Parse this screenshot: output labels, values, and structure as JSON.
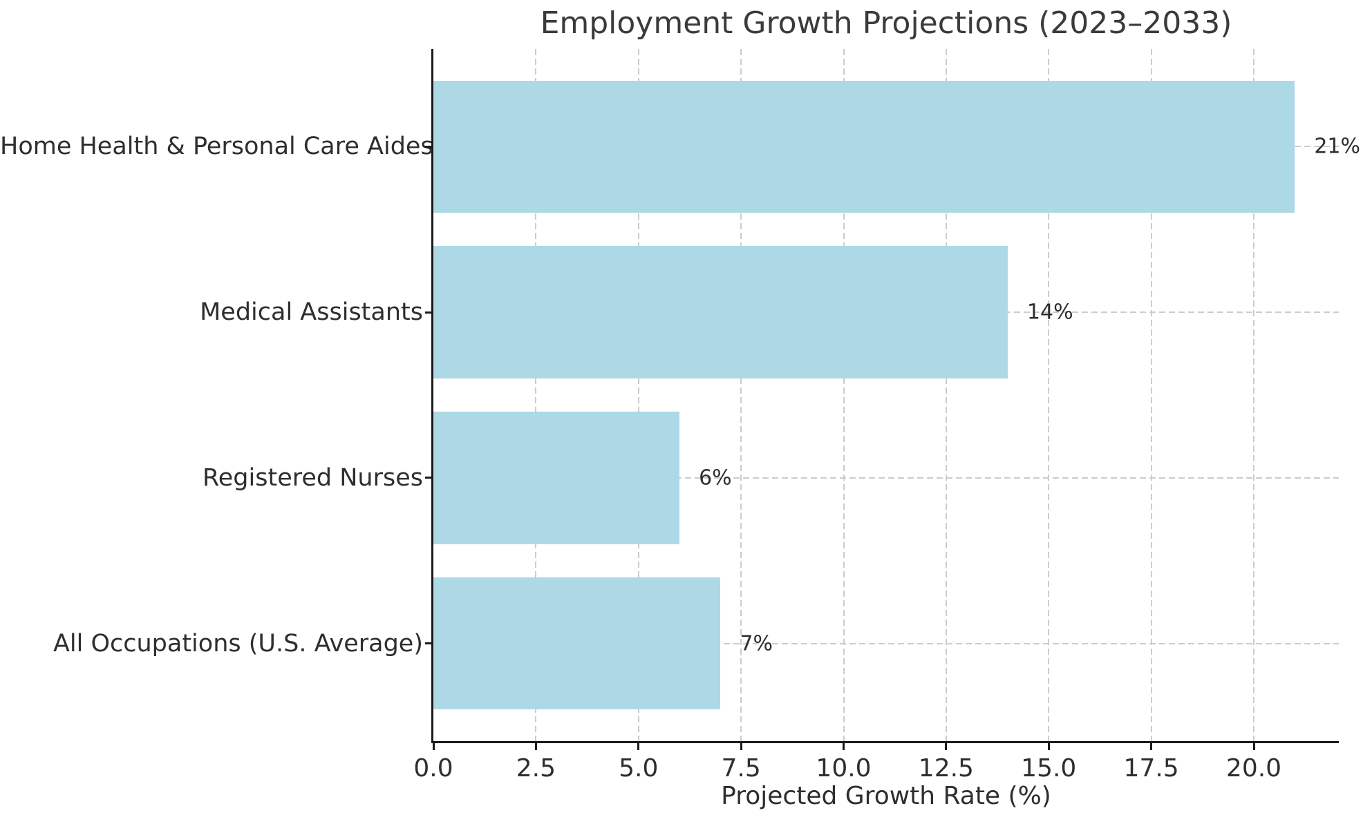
{
  "chart_data": {
    "type": "bar",
    "orientation": "horizontal",
    "title": "Employment Growth Projections (2023–2033)",
    "xlabel": "Projected Growth Rate (%)",
    "categories": [
      "Home Health & Personal Care Aides",
      "Medical Assistants",
      "Registered Nurses",
      "All Occupations (U.S. Average)"
    ],
    "values": [
      21,
      14,
      6,
      7
    ],
    "value_labels": [
      "21%",
      "14%",
      "6%",
      "7%"
    ],
    "xlim": [
      0,
      22
    ],
    "xticks": [
      0.0,
      2.5,
      5.0,
      7.5,
      10.0,
      12.5,
      15.0,
      17.5,
      20.0
    ],
    "xtick_labels": [
      "0.0",
      "2.5",
      "5.0",
      "7.5",
      "10.0",
      "12.5",
      "15.0",
      "17.5",
      "20.0"
    ],
    "grid": true,
    "grid_style": "dashed",
    "legend_position": "none",
    "colors": {
      "bar": "#add8e6",
      "grid": "#cccccc",
      "text": "#2e2e2e",
      "title": "#3a3a3a",
      "spine": "#1a1a1a"
    }
  }
}
